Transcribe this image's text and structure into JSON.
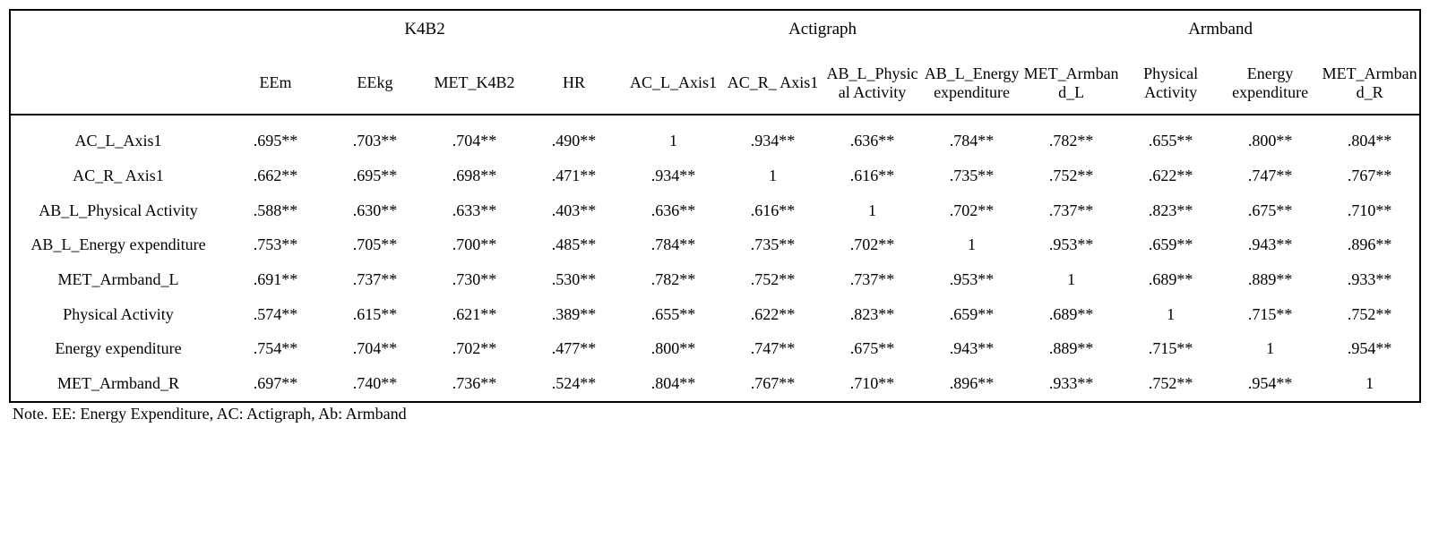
{
  "table": {
    "type": "table",
    "background_color": "#ffffff",
    "border_color": "#000000",
    "text_color": "#000000",
    "font_family": "Times New Roman",
    "groups": [
      {
        "label": "K4B2",
        "span": 4
      },
      {
        "label": "Actigraph",
        "span": 4
      },
      {
        "label": "Armband",
        "span": 4
      }
    ],
    "columns": [
      "EEm",
      "EEkg",
      "MET_K4B2",
      "HR",
      "AC_L_Axis1",
      "AC_R_ Axis1",
      "AB_L_Physical Activity",
      "AB_L_Energy expenditure",
      "MET_Armband_L",
      "Physical Activity",
      "Energy expenditure",
      "MET_Armband_R"
    ],
    "rows": [
      {
        "label": "AC_L_Axis1",
        "cells": [
          ".695**",
          ".703**",
          ".704**",
          ".490**",
          "1",
          ".934**",
          ".636**",
          ".784**",
          ".782**",
          ".655**",
          ".800**",
          ".804**"
        ]
      },
      {
        "label": "AC_R_ Axis1",
        "cells": [
          ".662**",
          ".695**",
          ".698**",
          ".471**",
          ".934**",
          "1",
          ".616**",
          ".735**",
          ".752**",
          ".622**",
          ".747**",
          ".767**"
        ]
      },
      {
        "label": "AB_L_Physical Activity",
        "cells": [
          ".588**",
          ".630**",
          ".633**",
          ".403**",
          ".636**",
          ".616**",
          "1",
          ".702**",
          ".737**",
          ".823**",
          ".675**",
          ".710**"
        ]
      },
      {
        "label": "AB_L_Energy expenditure",
        "cells": [
          ".753**",
          ".705**",
          ".700**",
          ".485**",
          ".784**",
          ".735**",
          ".702**",
          "1",
          ".953**",
          ".659**",
          ".943**",
          ".896**"
        ]
      },
      {
        "label": "MET_Armband_L",
        "cells": [
          ".691**",
          ".737**",
          ".730**",
          ".530**",
          ".782**",
          ".752**",
          ".737**",
          ".953**",
          "1",
          ".689**",
          ".889**",
          ".933**"
        ]
      },
      {
        "label": "Physical Activity",
        "cells": [
          ".574**",
          ".615**",
          ".621**",
          ".389**",
          ".655**",
          ".622**",
          ".823**",
          ".659**",
          ".689**",
          "1",
          ".715**",
          ".752**"
        ]
      },
      {
        "label": "Energy expenditure",
        "cells": [
          ".754**",
          ".704**",
          ".702**",
          ".477**",
          ".800**",
          ".747**",
          ".675**",
          ".943**",
          ".889**",
          ".715**",
          "1",
          ".954**"
        ]
      },
      {
        "label": "MET_Armband_R",
        "cells": [
          ".697**",
          ".740**",
          ".736**",
          ".524**",
          ".804**",
          ".767**",
          ".710**",
          ".896**",
          ".933**",
          ".752**",
          ".954**",
          "1"
        ]
      }
    ]
  },
  "footnote": "Note. EE: Energy Expenditure, AC: Actigraph, Ab: Armband"
}
